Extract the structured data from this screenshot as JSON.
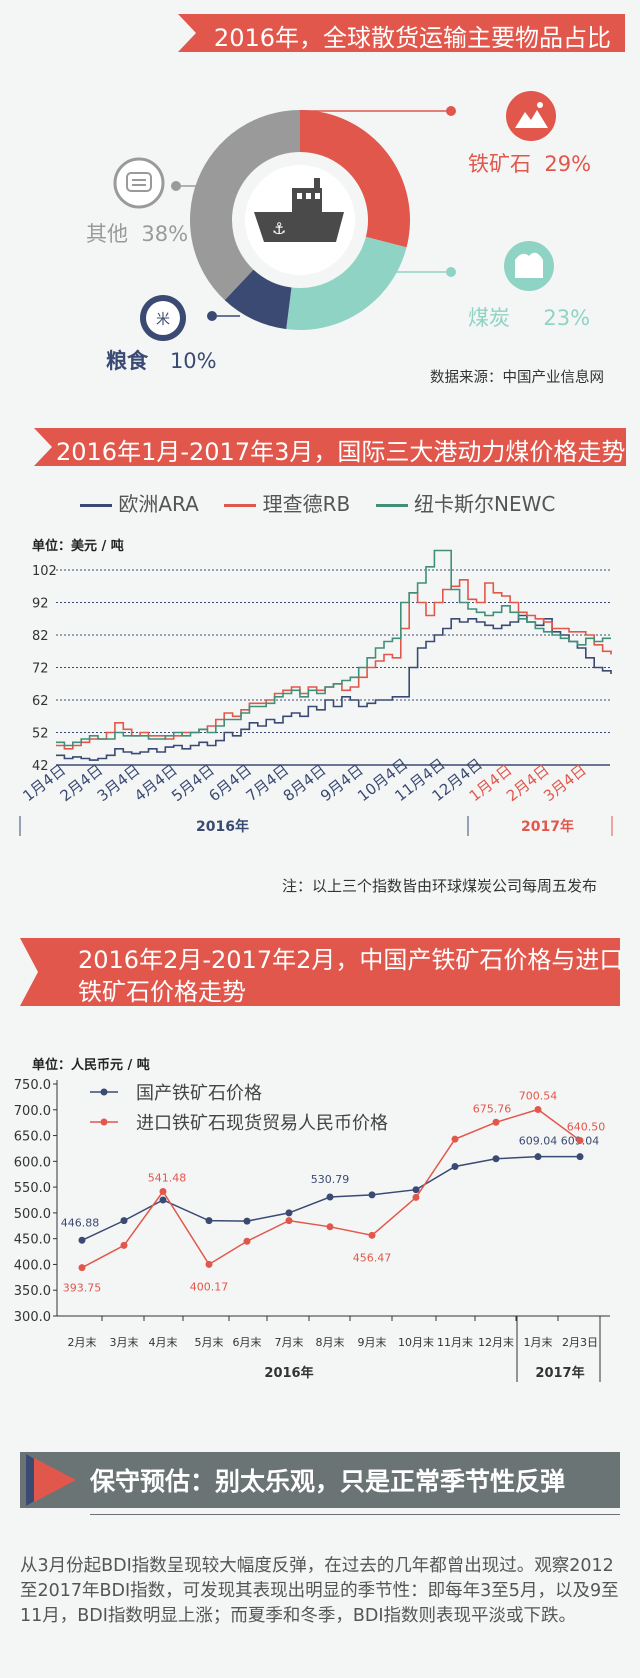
{
  "donut": {
    "title": "2016年，全球散货运输主要物品占比",
    "source": "数据来源：中国产业信息网",
    "center_icon": "ship-icon",
    "slices": [
      {
        "name": "铁矿石",
        "value": 29,
        "label": "29%",
        "color": "#e2574b",
        "icon": "ore-icon"
      },
      {
        "name": "煤炭",
        "value": 23,
        "label": "23%",
        "color": "#8fd3c4",
        "icon": "coal-icon"
      },
      {
        "name": "粮食",
        "value": 10,
        "label": "10%",
        "color": "#3b4a72",
        "icon": "grain-icon"
      },
      {
        "name": "其他",
        "value": 38,
        "label": "38%",
        "color": "#9a9a9a",
        "icon": "chat-icon"
      }
    ]
  },
  "chart_data": [
    {
      "type": "line",
      "title": "2016年1月-2017年3月，国际三大港动力煤价格走势",
      "unit": "单位：美元 / 吨",
      "y_ticks": [
        42,
        52,
        62,
        72,
        82,
        92,
        102
      ],
      "ylim": [
        42,
        112
      ],
      "x_ticks": [
        "1月4日",
        "2月4日",
        "3月4日",
        "4月4日",
        "5月4日",
        "6月4日",
        "7月4日",
        "8月4日",
        "9月4日",
        "10月4日",
        "11月4日",
        "12月4日",
        "1月4日",
        "2月4日",
        "3月4日"
      ],
      "year_labels": [
        "2016年",
        "2017年"
      ],
      "note": "注：以上三个指数皆由环球煤炭公司每周五发布",
      "series": [
        {
          "name": "欧洲ARA",
          "color": "#3b4a72",
          "values": [
            45,
            44,
            44.5,
            44,
            43.5,
            44,
            45,
            47,
            46,
            45.5,
            46,
            47,
            46,
            47.5,
            48,
            47,
            48,
            49,
            48,
            49.5,
            52,
            51,
            53,
            55,
            54,
            56,
            55,
            57,
            58,
            57,
            60,
            59,
            62,
            60,
            63,
            62,
            60,
            61,
            62,
            62,
            63,
            63,
            72,
            78,
            80,
            82,
            84,
            87,
            86,
            87,
            86,
            85,
            84,
            85,
            86,
            88,
            86,
            85,
            87,
            83,
            82,
            80,
            78,
            75,
            72,
            71,
            70
          ]
        },
        {
          "name": "理查德RB",
          "color": "#e2574b",
          "values": [
            48,
            47,
            48,
            49,
            50,
            50,
            52,
            55,
            53,
            51,
            52,
            51,
            51,
            50,
            51,
            52,
            52,
            53,
            54,
            56,
            58,
            57,
            59,
            61,
            61,
            62,
            64,
            65,
            66,
            64,
            66,
            65,
            66,
            67,
            65,
            66,
            69,
            72,
            74,
            76,
            75,
            84,
            95,
            92,
            88,
            92,
            96,
            97,
            99,
            93,
            92,
            98,
            95,
            94,
            92,
            89,
            88,
            87,
            86,
            84,
            84,
            83,
            83,
            82,
            79,
            77,
            76
          ]
        },
        {
          "name": "纽卡斯尔NEWC",
          "color": "#3f8f79",
          "values": [
            49,
            48,
            49,
            50,
            51,
            50,
            50,
            52,
            51,
            51,
            51,
            50,
            50,
            51,
            52,
            51,
            52,
            53,
            52,
            54,
            56,
            56,
            58,
            60,
            60,
            61,
            63,
            64,
            65,
            63,
            65,
            64,
            66,
            67,
            68,
            69,
            72,
            75,
            78,
            80,
            81,
            92,
            95,
            98,
            103,
            108,
            108,
            96,
            92,
            90,
            89,
            88,
            89,
            91,
            89,
            87,
            86,
            84,
            83,
            82,
            81,
            80,
            79,
            81,
            80,
            81,
            81
          ]
        }
      ]
    },
    {
      "type": "line",
      "title": "2016年2月-2017年2月，中国产铁矿石价格与进口铁矿石价格走势",
      "unit": "单位：人民币元 / 吨",
      "ylim": [
        300,
        750
      ],
      "y_ticks": [
        "300.0",
        "350.0",
        "400.0",
        "450.0",
        "500.0",
        "550.0",
        "600.0",
        "650.0",
        "700.0",
        "750.0"
      ],
      "categories": [
        "2月末",
        "3月末",
        "4月末",
        "5月末",
        "6月末",
        "7月末",
        "8月末",
        "9月末",
        "10月末",
        "11月末",
        "12月末",
        "1月末",
        "2月3日"
      ],
      "year_labels": [
        "2016年",
        "2017年"
      ],
      "series": [
        {
          "name": "国产铁矿石价格",
          "color": "#3b4a72",
          "values": [
            446.88,
            485,
            525,
            485,
            484,
            500,
            530.79,
            535,
            545,
            590,
            605,
            609.04,
            609.04
          ],
          "labels": [
            "446.88",
            "",
            "",
            "",
            "",
            "",
            "530.79",
            "",
            "",
            "",
            "",
            "609.04",
            "609.04"
          ]
        },
        {
          "name": "进口铁矿石现货贸易人民币价格",
          "color": "#e2574b",
          "values": [
            393.75,
            437,
            541.48,
            400.17,
            445,
            485,
            473,
            456.47,
            530,
            643,
            675.76,
            700.54,
            640.5
          ],
          "labels": [
            "393.75",
            "",
            "541.48",
            "400.17",
            "",
            "",
            "",
            "456.47",
            "",
            "",
            "675.76",
            "700.54",
            "640.50"
          ]
        }
      ]
    }
  ],
  "section4": {
    "title": "保守预估：别太乐观，只是正常季节性反弹",
    "paragraph": "从3月份起BDI指数呈现较大幅度反弹，在过去的几年都曾出现过。观察2012至2017年BDI指数，可发现其表现出明显的季节性：即每年3至5月，以及9至11月，BDI指数明显上涨；而夏季和冬季，BDI指数则表现平淡或下跌。"
  }
}
